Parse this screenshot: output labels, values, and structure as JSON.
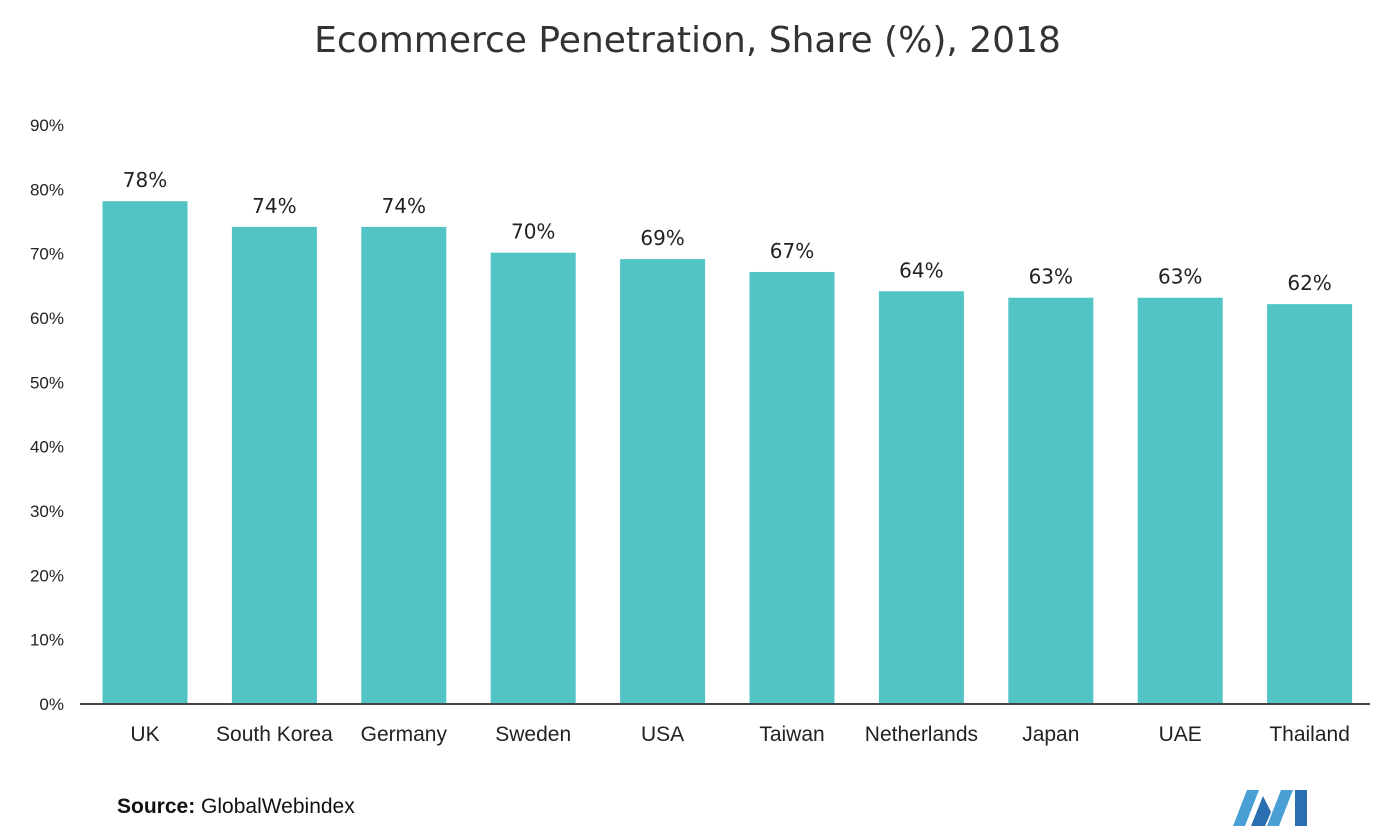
{
  "title": "Ecommerce Penetration, Share (%), 2018",
  "source": {
    "label": "Source:",
    "text": "GlobalWebindex"
  },
  "colors": {
    "bar": "#52c4c6",
    "axis": "#444444",
    "logo": "#4a9fd5",
    "logo_dark": "#2a6fb0"
  },
  "chart_data": {
    "type": "bar",
    "title": "Ecommerce Penetration, Share (%), 2018",
    "xlabel": "",
    "ylabel": "",
    "categories": [
      "UK",
      "South Korea",
      "Germany",
      "Sweden",
      "USA",
      "Taiwan",
      "Netherlands",
      "Japan",
      "UAE",
      "Thailand"
    ],
    "values": [
      78,
      74,
      74,
      70,
      69,
      67,
      64,
      63,
      63,
      62
    ],
    "value_labels": [
      "78%",
      "74%",
      "74%",
      "70%",
      "69%",
      "67%",
      "64%",
      "63%",
      "63%",
      "62%"
    ],
    "ylim": [
      0,
      90
    ],
    "yticks": [
      0,
      10,
      20,
      30,
      40,
      50,
      60,
      70,
      80,
      90
    ],
    "ytick_labels": [
      "0%",
      "10%",
      "20%",
      "30%",
      "40%",
      "50%",
      "60%",
      "70%",
      "80%",
      "90%"
    ],
    "grid": false,
    "legend": "none"
  }
}
